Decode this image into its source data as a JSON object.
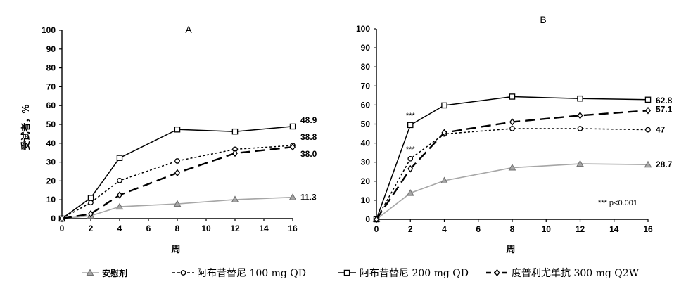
{
  "chart_data": [
    {
      "type": "line",
      "title": "A",
      "xlabel": "周",
      "ylabel": "受试者，%",
      "x": [
        0,
        2,
        4,
        8,
        12,
        16
      ],
      "xticks": [
        0,
        2,
        4,
        6,
        8,
        10,
        12,
        14,
        16
      ],
      "yticks": [
        0,
        10,
        20,
        30,
        40,
        50,
        60,
        70,
        80,
        90,
        100
      ],
      "xlim": [
        0,
        16
      ],
      "ylim": [
        0,
        100
      ],
      "grid": false,
      "series": [
        {
          "name": "安慰剂",
          "values": [
            0,
            1.5,
            6.3,
            7.8,
            10.1,
            11.3
          ],
          "color": "#a6a6a6",
          "marker": "triangle",
          "dash": "solid",
          "end_label": "11.3"
        },
        {
          "name": "阿布昔替尼 100 mg QD",
          "values": [
            0,
            8.5,
            20.2,
            30.6,
            36.8,
            38.8
          ],
          "color": "#000000",
          "marker": "circle",
          "dash": "short",
          "end_label": "38.8"
        },
        {
          "name": "阿布昔替尼 200 mg QD",
          "values": [
            0,
            11.0,
            32.2,
            47.3,
            46.2,
            48.9
          ],
          "color": "#000000",
          "marker": "square",
          "dash": "solid",
          "end_label": "48.9"
        },
        {
          "name": "度普利尤单抗 300 mg Q2W",
          "values": [
            0,
            2.5,
            12.5,
            24.3,
            34.7,
            38.0
          ],
          "color": "#000000",
          "marker": "diamond",
          "dash": "long",
          "end_label": "38.0"
        }
      ]
    },
    {
      "type": "line",
      "title": "B",
      "xlabel": "周",
      "ylabel": "",
      "x": [
        0,
        2,
        4,
        8,
        12,
        16
      ],
      "xticks": [
        0,
        2,
        4,
        6,
        8,
        10,
        12,
        14,
        16
      ],
      "yticks": [
        0,
        10,
        20,
        30,
        40,
        50,
        60,
        70,
        80,
        90,
        100
      ],
      "xlim": [
        0,
        16
      ],
      "ylim": [
        0,
        100
      ],
      "grid": false,
      "annotations": {
        "week2_200": "***",
        "week2_100": "***",
        "note": "*** p<0.001"
      },
      "series": [
        {
          "name": "安慰剂",
          "values": [
            0,
            13.8,
            20.3,
            27.1,
            29.1,
            28.7
          ],
          "color": "#a6a6a6",
          "marker": "triangle",
          "dash": "solid",
          "end_label": "28.7"
        },
        {
          "name": "阿布昔替尼 100 mg QD",
          "values": [
            0,
            31.8,
            44.8,
            47.6,
            47.6,
            47.0
          ],
          "color": "#000000",
          "marker": "circle",
          "dash": "short",
          "end_label": "47"
        },
        {
          "name": "阿布昔替尼 200 mg QD",
          "values": [
            0,
            49.5,
            59.8,
            64.4,
            63.4,
            62.8
          ],
          "color": "#000000",
          "marker": "square",
          "dash": "solid",
          "end_label": "62.8"
        },
        {
          "name": "度普利尤单抗 300 mg Q2W",
          "values": [
            0,
            26.5,
            45.5,
            51.1,
            54.5,
            57.1
          ],
          "color": "#000000",
          "marker": "diamond",
          "dash": "long",
          "end_label": "57.1"
        }
      ]
    }
  ],
  "legend": {
    "placement": "bottom",
    "items": [
      {
        "label": "安慰剂",
        "marker": "triangle",
        "dash": "solid",
        "color": "#a6a6a6"
      },
      {
        "label": "阿布昔替尼 100 mg QD",
        "marker": "circle",
        "dash": "short",
        "color": "#000000"
      },
      {
        "label": "阿布昔替尼 200 mg QD",
        "marker": "square",
        "dash": "solid",
        "color": "#000000"
      },
      {
        "label": "度普利尤单抗 300 mg Q2W",
        "marker": "diamond",
        "dash": "long",
        "color": "#000000"
      }
    ]
  }
}
